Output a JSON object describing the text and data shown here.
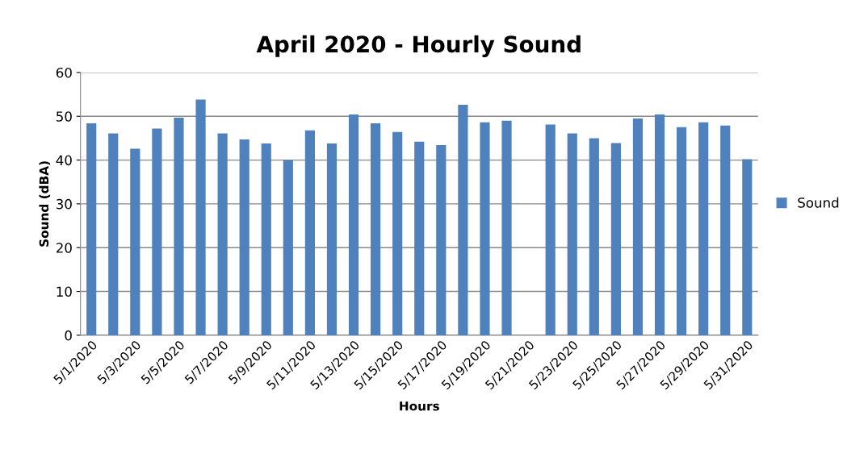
{
  "chart_data": {
    "type": "bar",
    "title": "April 2020 - Hourly Sound",
    "xlabel": "Hours",
    "ylabel": "Sound (dBA)",
    "categories": [
      "5/1/2020",
      null,
      "5/3/2020",
      null,
      "5/5/2020",
      null,
      "5/7/2020",
      null,
      "5/9/2020",
      null,
      "5/11/2020",
      null,
      "5/13/2020",
      null,
      "5/15/2020",
      null,
      "5/17/2020",
      null,
      "5/19/2020",
      null,
      "5/21/2020",
      null,
      "5/23/2020",
      null,
      "5/25/2020",
      null,
      "5/27/2020",
      null,
      "5/29/2020",
      null,
      "5/31/2020"
    ],
    "series": [
      {
        "name": "Sound",
        "color": "#4f81bd",
        "values": [
          48.4,
          46.1,
          42.6,
          47.2,
          49.7,
          53.8,
          46.1,
          44.7,
          43.8,
          40.0,
          46.8,
          43.8,
          50.4,
          48.4,
          46.4,
          44.2,
          43.4,
          52.6,
          48.6,
          49.0,
          null,
          48.1,
          46.1,
          45.0,
          43.9,
          49.5,
          50.4,
          47.5,
          48.6,
          47.9,
          40.2
        ]
      }
    ],
    "ylim": [
      0,
      60
    ],
    "yticks": [
      0,
      10,
      20,
      30,
      40,
      50,
      60
    ],
    "grid": "y",
    "legend": "right"
  }
}
